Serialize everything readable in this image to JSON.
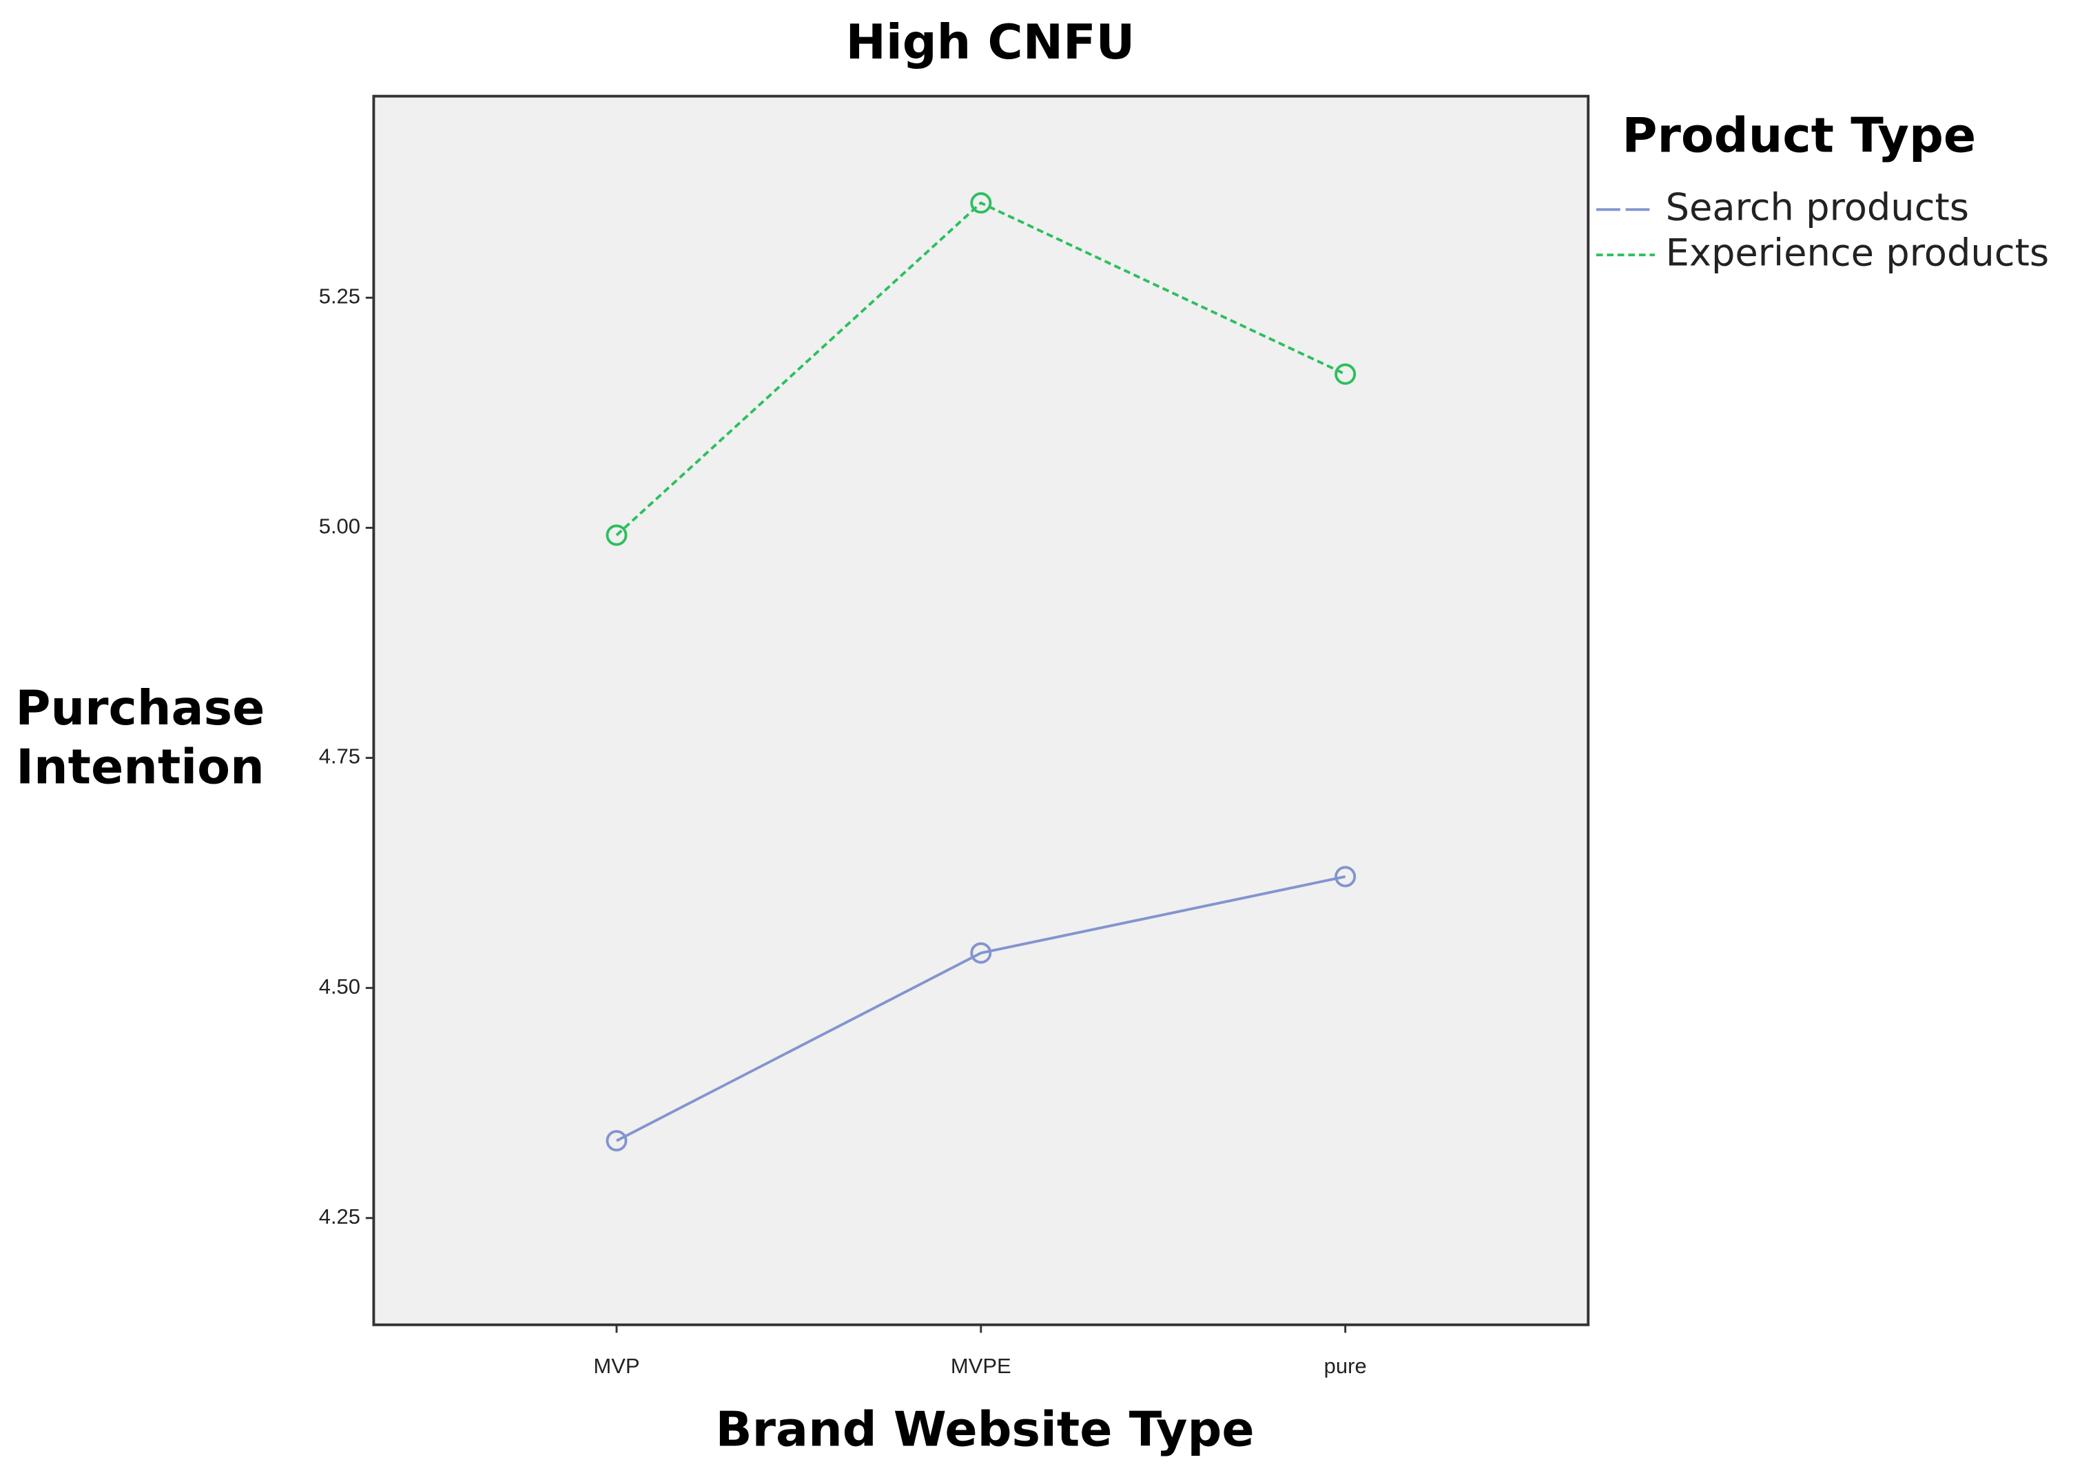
{
  "chart_data": {
    "type": "line",
    "title": "High CNFU",
    "x_label": "Brand Website Type",
    "y_label": "Purchase Intention",
    "categories": [
      "MVP",
      "MVPE",
      "pure"
    ],
    "series": [
      {
        "name": "Search products",
        "color": "#8394cf",
        "linestyle": "solid",
        "values": [
          4.334,
          4.538,
          4.621
        ]
      },
      {
        "name": "Experience products",
        "color": "#2dbf5e",
        "linestyle": "dashed",
        "values": [
          4.992,
          5.353,
          5.167
        ]
      }
    ],
    "ylim": [
      4.134,
      5.469
    ],
    "yticks": [
      4.25,
      {
        "value": 4.5,
        "label": "4.50"
      },
      4.75,
      {
        "value": 5,
        "label": "5.00"
      },
      5.25
    ],
    "legend_title": "Product Type",
    "legend_position": "right",
    "background": "#f0f0f0",
    "grid": false
  }
}
